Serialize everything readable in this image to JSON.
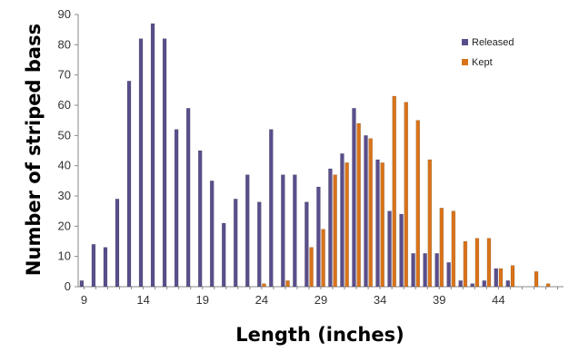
{
  "chart_data": {
    "type": "bar",
    "xlabel": "Length (inches)",
    "ylabel": "Number of striped bass",
    "ylim": [
      0,
      90
    ],
    "yticks": [
      0,
      10,
      20,
      30,
      40,
      50,
      60,
      70,
      80,
      90
    ],
    "xlim": [
      8.5,
      49.5
    ],
    "xticks": [
      9,
      14,
      19,
      24,
      29,
      34,
      39,
      44
    ],
    "grid": false,
    "legend_position": "top-right",
    "series": [
      {
        "name": "Released",
        "color": "#5a4e8c",
        "x": [
          9,
          10,
          11,
          12,
          13,
          14,
          15,
          16,
          17,
          18,
          19,
          20,
          21,
          22,
          23,
          24,
          25,
          26,
          27,
          28,
          29,
          30,
          31,
          32,
          33,
          34,
          35,
          36,
          37,
          38,
          39,
          40,
          41,
          42,
          43,
          44,
          45
        ],
        "values": [
          2,
          14,
          13,
          29,
          68,
          82,
          87,
          82,
          52,
          59,
          45,
          35,
          21,
          29,
          37,
          28,
          52,
          37,
          37,
          28,
          33,
          39,
          44,
          59,
          50,
          42,
          25,
          24,
          11,
          11,
          11,
          8,
          2,
          1,
          2,
          6,
          2
        ]
      },
      {
        "name": "Kept",
        "color": "#d9731a",
        "x": [
          24,
          26,
          28,
          29,
          30,
          31,
          32,
          33,
          34,
          35,
          36,
          37,
          38,
          39,
          40,
          41,
          42,
          43,
          44,
          45,
          47,
          48
        ],
        "values": [
          1,
          2,
          13,
          19,
          37,
          41,
          54,
          49,
          41,
          63,
          61,
          55,
          42,
          26,
          25,
          15,
          16,
          16,
          6,
          7,
          5,
          1
        ]
      }
    ]
  }
}
